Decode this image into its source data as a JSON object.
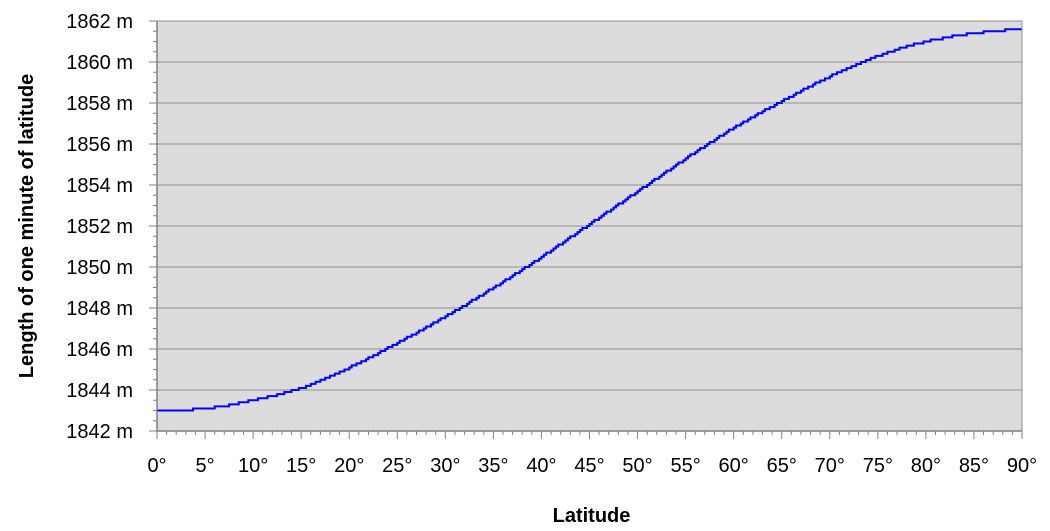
{
  "chart_data": {
    "type": "line",
    "xlabel": "Latitude",
    "ylabel": "Length of one minute of latitude",
    "x_ticks": [
      "0°",
      "5°",
      "10°",
      "15°",
      "20°",
      "25°",
      "30°",
      "35°",
      "40°",
      "45°",
      "50°",
      "55°",
      "60°",
      "65°",
      "70°",
      "75°",
      "80°",
      "85°",
      "90°"
    ],
    "y_ticks": [
      "1842 m",
      "1844 m",
      "1846 m",
      "1848 m",
      "1850 m",
      "1852 m",
      "1854 m",
      "1856 m",
      "1858 m",
      "1860 m",
      "1862 m"
    ],
    "xlim": [
      0,
      90
    ],
    "ylim": [
      1842,
      1862
    ],
    "grid": true,
    "plot_background": "#DCDCDC",
    "series": [
      {
        "color": "#0000FF",
        "step": true,
        "x": [
          0,
          5,
          10,
          15,
          20,
          25,
          30,
          35,
          40,
          45,
          50,
          55,
          60,
          65,
          70,
          75,
          80,
          85,
          90
        ],
        "y": [
          1843.0,
          1843.1,
          1843.5,
          1844.1,
          1845.1,
          1846.3,
          1847.6,
          1849.0,
          1850.5,
          1852.1,
          1853.7,
          1855.3,
          1856.8,
          1858.1,
          1859.3,
          1860.3,
          1861.0,
          1861.4,
          1861.6
        ]
      }
    ]
  }
}
